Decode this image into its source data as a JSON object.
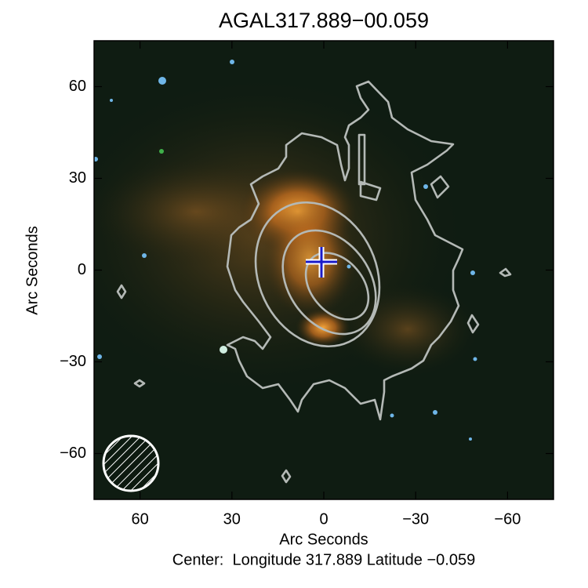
{
  "chart_data": {
    "type": "image",
    "title": "AGAL317.889−00.059",
    "x_label": "Arc Seconds",
    "y_label": "Arc Seconds",
    "subtitle": "Center:  Longitude 317.889 Latitude −0.059",
    "xlim": [
      75,
      -75
    ],
    "ylim": [
      -75,
      75
    ],
    "xticks": [
      60,
      30,
      0,
      {
        "value": -30,
        "label": "−30"
      },
      {
        "value": -60,
        "label": "−60"
      }
    ],
    "yticks": [
      {
        "value": -60,
        "label": "−60"
      },
      {
        "value": -30,
        "label": "−30"
      },
      0,
      30,
      60
    ]
  }
}
